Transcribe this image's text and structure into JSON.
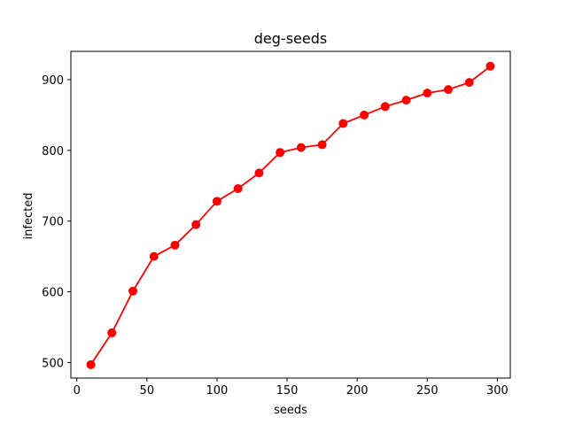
{
  "chart_data": {
    "type": "line",
    "title": "deg-seeds",
    "xlabel": "seeds",
    "ylabel": "infected",
    "xlim": [
      -4.25,
      309.25
    ],
    "ylim": [
      478,
      940
    ],
    "xticks": [
      0,
      50,
      100,
      150,
      200,
      250,
      300
    ],
    "yticks": [
      500,
      600,
      700,
      800,
      900
    ],
    "grid": false,
    "legend": "none",
    "series": [
      {
        "color": "#ff0000",
        "marker": "circle",
        "x": [
          10,
          25,
          40,
          55,
          70,
          85,
          100,
          115,
          130,
          145,
          160,
          175,
          190,
          205,
          220,
          235,
          250,
          265,
          280,
          295
        ],
        "y": [
          497,
          542,
          601,
          650,
          666,
          695,
          728,
          746,
          768,
          797,
          804,
          808,
          838,
          850,
          862,
          871,
          881,
          886,
          896,
          919
        ]
      }
    ]
  }
}
